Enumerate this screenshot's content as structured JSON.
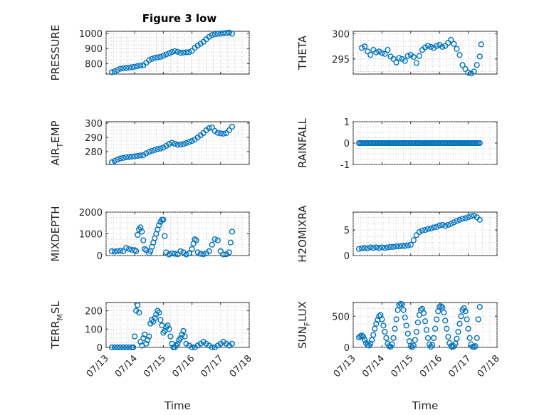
{
  "title": "Figure 3 low",
  "colors": {
    "marker": "#0072BD",
    "axis": "#262626",
    "grid": "#b8b8b8"
  },
  "chart_data": [
    {
      "id": "pressure",
      "type": "scatter",
      "ylabel": "PRESSURE",
      "ylim": [
        730,
        1015
      ],
      "yticks": [
        800,
        900,
        1000
      ],
      "ytick_labels": [
        "800",
        "900",
        "1000"
      ],
      "xlim": [
        0,
        5
      ],
      "grid": true,
      "series": [
        {
          "x": [
            0.2,
            0.3,
            0.4,
            0.5,
            0.6,
            0.7,
            0.8,
            0.9,
            1.0,
            1.1,
            1.2,
            1.3,
            1.4,
            1.5,
            1.6,
            1.7,
            1.8,
            1.9,
            2.0,
            2.1,
            2.2,
            2.3,
            2.4,
            2.5,
            2.6,
            2.7,
            2.8,
            2.9,
            3.0,
            3.1,
            3.2,
            3.3,
            3.4,
            3.5,
            3.6,
            3.7,
            3.8,
            3.9,
            4.0,
            4.1,
            4.2,
            4.3,
            4.4
          ],
          "y": [
            742,
            748,
            757,
            766,
            768,
            771,
            773,
            776,
            779,
            783,
            787,
            788,
            805,
            822,
            831,
            838,
            841,
            845,
            852,
            860,
            868,
            877,
            883,
            878,
            872,
            873,
            875,
            876,
            885,
            905,
            920,
            932,
            945,
            962,
            978,
            990,
            995,
            998,
            1000,
            1002,
            1004,
            1006,
            999
          ]
        }
      ]
    },
    {
      "id": "theta",
      "type": "scatter",
      "ylabel": "THETA",
      "ylim": [
        292,
        300.5
      ],
      "yticks": [
        295,
        300
      ],
      "ytick_labels": [
        "295",
        "300"
      ],
      "xlim": [
        0,
        5
      ],
      "grid": true,
      "series": [
        {
          "x": [
            0.3,
            0.4,
            0.5,
            0.6,
            0.7,
            0.8,
            0.9,
            1.0,
            1.1,
            1.2,
            1.3,
            1.4,
            1.5,
            1.6,
            1.7,
            1.8,
            1.9,
            2.0,
            2.1,
            2.2,
            2.3,
            2.4,
            2.5,
            2.6,
            2.7,
            2.8,
            2.9,
            3.0,
            3.1,
            3.2,
            3.3,
            3.4,
            3.5,
            3.6,
            3.7,
            3.8,
            3.9,
            4.0,
            4.1,
            4.2,
            4.3,
            4.4,
            4.45
          ],
          "y": [
            297.2,
            297.5,
            296.5,
            295.8,
            296.8,
            296.3,
            296.5,
            296.2,
            296.0,
            296.8,
            295.5,
            295.0,
            294.3,
            295.2,
            295.0,
            294.6,
            295.6,
            295.8,
            295.4,
            294.2,
            295.6,
            296.8,
            297.3,
            297.6,
            297.4,
            297.2,
            297.6,
            297.8,
            297.4,
            297.6,
            298.2,
            298.8,
            298.0,
            297.0,
            295.8,
            293.8,
            293.0,
            292.3,
            292.1,
            292.5,
            293.8,
            295.5,
            297.9
          ]
        }
      ]
    },
    {
      "id": "air_temp",
      "type": "scatter",
      "ylabel": "AIR",
      "ylabel_sub": "T",
      "ylabel_suffix": "EMP",
      "ylim": [
        271,
        301
      ],
      "yticks": [
        280,
        290,
        300
      ],
      "ytick_labels": [
        "280",
        "290",
        "300"
      ],
      "xlim": [
        0,
        5
      ],
      "grid": true,
      "series": [
        {
          "x": [
            0.2,
            0.3,
            0.4,
            0.5,
            0.6,
            0.7,
            0.8,
            0.9,
            1.0,
            1.1,
            1.2,
            1.3,
            1.4,
            1.5,
            1.6,
            1.7,
            1.8,
            1.9,
            2.0,
            2.1,
            2.2,
            2.3,
            2.4,
            2.5,
            2.6,
            2.7,
            2.8,
            2.9,
            3.0,
            3.1,
            3.2,
            3.3,
            3.4,
            3.5,
            3.6,
            3.7,
            3.8,
            3.9,
            4.0,
            4.1,
            4.2,
            4.3,
            4.4
          ],
          "y": [
            272.5,
            273.5,
            274.5,
            275.2,
            275.6,
            276.0,
            276.2,
            276.5,
            276.7,
            277.0,
            277.3,
            277.5,
            278.8,
            279.8,
            280.5,
            281.2,
            281.8,
            282.2,
            282.8,
            284.0,
            285.3,
            286.2,
            285.5,
            284.8,
            285.0,
            285.3,
            286.0,
            286.8,
            287.5,
            288.5,
            290.0,
            291.5,
            293.0,
            295.0,
            296.5,
            297.0,
            294.5,
            293.2,
            292.8,
            292.6,
            293.0,
            295.0,
            297.5
          ]
        }
      ]
    },
    {
      "id": "rainfall",
      "type": "scatter",
      "ylabel": "RAINFALL",
      "ylim": [
        -1,
        1
      ],
      "yticks": [
        -1,
        0,
        1
      ],
      "ytick_labels": [
        "-1",
        "0",
        "1"
      ],
      "xlim": [
        0,
        5
      ],
      "grid": true,
      "series": [
        {
          "x_range": [
            0.2,
            4.4
          ],
          "x_step": 0.05,
          "y_const": 0
        }
      ]
    },
    {
      "id": "mixdepth",
      "type": "scatter",
      "ylabel": "MIXDEPTH",
      "ylim": [
        0,
        2000
      ],
      "yticks": [
        0,
        1000,
        2000
      ],
      "ytick_labels": [
        "0",
        "1000",
        "2000"
      ],
      "xlim": [
        0,
        5
      ],
      "grid": true,
      "series": [
        {
          "x": [
            0.2,
            0.3,
            0.4,
            0.5,
            0.6,
            0.7,
            0.8,
            0.9,
            1.0,
            1.05,
            1.1,
            1.15,
            1.2,
            1.25,
            1.3,
            1.35,
            1.4,
            1.5,
            1.55,
            1.6,
            1.65,
            1.7,
            1.75,
            1.8,
            1.85,
            1.9,
            1.95,
            2.0,
            2.05,
            2.1,
            2.2,
            2.3,
            2.4,
            2.5,
            2.6,
            2.7,
            2.8,
            2.9,
            3.0,
            3.05,
            3.1,
            3.15,
            3.2,
            3.3,
            3.4,
            3.5,
            3.6,
            3.7,
            3.8,
            3.9,
            4.0,
            4.1,
            4.2,
            4.3,
            4.35,
            4.4
          ],
          "y": [
            200,
            180,
            210,
            220,
            200,
            350,
            300,
            260,
            250,
            200,
            950,
            1200,
            1300,
            1100,
            700,
            300,
            250,
            100,
            200,
            400,
            600,
            800,
            1000,
            1200,
            1400,
            1550,
            1650,
            1650,
            900,
            150,
            50,
            100,
            80,
            60,
            200,
            150,
            50,
            100,
            300,
            550,
            750,
            700,
            150,
            80,
            60,
            100,
            200,
            500,
            750,
            700,
            200,
            50,
            60,
            150,
            600,
            1100
          ]
        }
      ]
    },
    {
      "id": "h2omixra",
      "type": "scatter",
      "ylabel": "H2OMIXRA",
      "ylim": [
        0,
        8.5
      ],
      "yticks": [
        0,
        5
      ],
      "ytick_labels": [
        "0",
        "5"
      ],
      "xlim": [
        0,
        5
      ],
      "grid": true,
      "series": [
        {
          "x": [
            0.2,
            0.3,
            0.4,
            0.5,
            0.6,
            0.7,
            0.8,
            0.9,
            1.0,
            1.1,
            1.2,
            1.3,
            1.4,
            1.5,
            1.6,
            1.7,
            1.8,
            1.9,
            2.0,
            2.1,
            2.2,
            2.3,
            2.4,
            2.5,
            2.6,
            2.7,
            2.8,
            2.9,
            3.0,
            3.1,
            3.2,
            3.3,
            3.4,
            3.5,
            3.6,
            3.7,
            3.8,
            3.9,
            4.0,
            4.1,
            4.2,
            4.3,
            4.4
          ],
          "y": [
            1.3,
            1.4,
            1.5,
            1.4,
            1.6,
            1.5,
            1.6,
            1.5,
            1.6,
            1.5,
            1.6,
            1.7,
            1.7,
            1.8,
            1.8,
            1.9,
            1.9,
            2.0,
            2.1,
            3.0,
            4.0,
            4.6,
            4.9,
            5.0,
            5.2,
            5.3,
            5.5,
            5.6,
            5.9,
            6.0,
            5.8,
            6.0,
            6.2,
            6.5,
            6.8,
            7.0,
            7.2,
            7.3,
            7.5,
            7.7,
            7.8,
            7.5,
            7.0
          ]
        }
      ]
    },
    {
      "id": "terr_msl",
      "type": "scatter",
      "ylabel": "TERR",
      "ylabel_sub": "M",
      "ylabel_suffix": "SL",
      "ylim": [
        0,
        245
      ],
      "yticks": [
        0,
        100,
        200
      ],
      "ytick_labels": [
        "0",
        "100",
        "200"
      ],
      "xlim": [
        0,
        5
      ],
      "grid": true,
      "xticks": [
        0,
        1,
        2,
        3,
        4,
        5
      ],
      "xtick_labels": [
        "07/13",
        "07/14",
        "07/15",
        "07/16",
        "07/17",
        "07/18"
      ],
      "xlabel": "Time",
      "series": [
        {
          "x": [
            0.2,
            0.3,
            0.4,
            0.5,
            0.6,
            0.7,
            0.8,
            0.9,
            0.95,
            1.0,
            1.05,
            1.1,
            1.15,
            1.2,
            1.25,
            1.3,
            1.35,
            1.4,
            1.45,
            1.5,
            1.55,
            1.6,
            1.65,
            1.7,
            1.75,
            1.8,
            1.85,
            1.9,
            1.95,
            2.0,
            2.05,
            2.1,
            2.15,
            2.2,
            2.25,
            2.3,
            2.35,
            2.4,
            2.45,
            2.5,
            2.55,
            2.6,
            2.65,
            2.7,
            2.75,
            2.8,
            2.9,
            3.0,
            3.1,
            3.2,
            3.3,
            3.4,
            3.5,
            3.6,
            3.7,
            3.8,
            3.9,
            4.0,
            4.1,
            4.2,
            4.3,
            4.4
          ],
          "y": [
            0,
            0,
            0,
            0,
            0,
            0,
            0,
            0,
            0,
            60,
            200,
            230,
            190,
            30,
            10,
            50,
            70,
            20,
            40,
            60,
            130,
            150,
            140,
            160,
            180,
            200,
            190,
            150,
            120,
            80,
            90,
            110,
            120,
            100,
            60,
            20,
            0,
            0,
            10,
            20,
            40,
            50,
            70,
            90,
            60,
            20,
            10,
            0,
            0,
            10,
            20,
            30,
            20,
            10,
            0,
            0,
            10,
            20,
            30,
            20,
            10,
            20
          ]
        }
      ]
    },
    {
      "id": "sun_flux",
      "type": "scatter",
      "ylabel": "SUN",
      "ylabel_sub": "F",
      "ylabel_suffix": "LUX",
      "ylim": [
        0,
        720
      ],
      "yticks": [
        0,
        500
      ],
      "ytick_labels": [
        "0",
        "500"
      ],
      "xlim": [
        0,
        5
      ],
      "grid": true,
      "xticks": [
        0,
        1,
        2,
        3,
        4,
        5
      ],
      "xtick_labels": [
        "07/13",
        "07/14",
        "07/15",
        "07/16",
        "07/17",
        "07/18"
      ],
      "xlabel": "Time",
      "series": [
        {
          "x": [
            0.2,
            0.25,
            0.3,
            0.35,
            0.4,
            0.45,
            0.5,
            0.55,
            0.6,
            0.65,
            0.7,
            0.75,
            0.8,
            0.85,
            0.9,
            0.95,
            1.0,
            1.05,
            1.1,
            1.15,
            1.2,
            1.25,
            1.3,
            1.35,
            1.4,
            1.45,
            1.5,
            1.55,
            1.6,
            1.65,
            1.7,
            1.75,
            1.8,
            1.85,
            1.9,
            1.95,
            2.0,
            2.05,
            2.1,
            2.15,
            2.2,
            2.25,
            2.3,
            2.35,
            2.4,
            2.45,
            2.5,
            2.55,
            2.6,
            2.65,
            2.7,
            2.75,
            2.8,
            2.85,
            2.9,
            2.95,
            3.0,
            3.05,
            3.1,
            3.15,
            3.2,
            3.25,
            3.3,
            3.35,
            3.4,
            3.45,
            3.5,
            3.55,
            3.6,
            3.65,
            3.7,
            3.75,
            3.8,
            3.85,
            3.9,
            3.95,
            4.0,
            4.05,
            4.1,
            4.15,
            4.2,
            4.25,
            4.3,
            4.35,
            4.4
          ],
          "y": [
            160,
            180,
            190,
            170,
            120,
            70,
            40,
            30,
            60,
            120,
            200,
            300,
            380,
            440,
            500,
            520,
            450,
            350,
            250,
            150,
            60,
            20,
            10,
            50,
            150,
            300,
            450,
            600,
            680,
            700,
            690,
            600,
            480,
            350,
            220,
            100,
            20,
            5,
            30,
            120,
            250,
            400,
            520,
            600,
            620,
            550,
            420,
            280,
            150,
            50,
            10,
            40,
            150,
            300,
            450,
            580,
            650,
            660,
            640,
            560,
            430,
            300,
            170,
            70,
            20,
            5,
            20,
            60,
            140,
            250,
            380,
            500,
            600,
            630,
            580,
            450,
            300,
            150,
            50,
            10,
            5,
            20,
            150,
            450,
            650
          ]
        }
      ]
    }
  ]
}
